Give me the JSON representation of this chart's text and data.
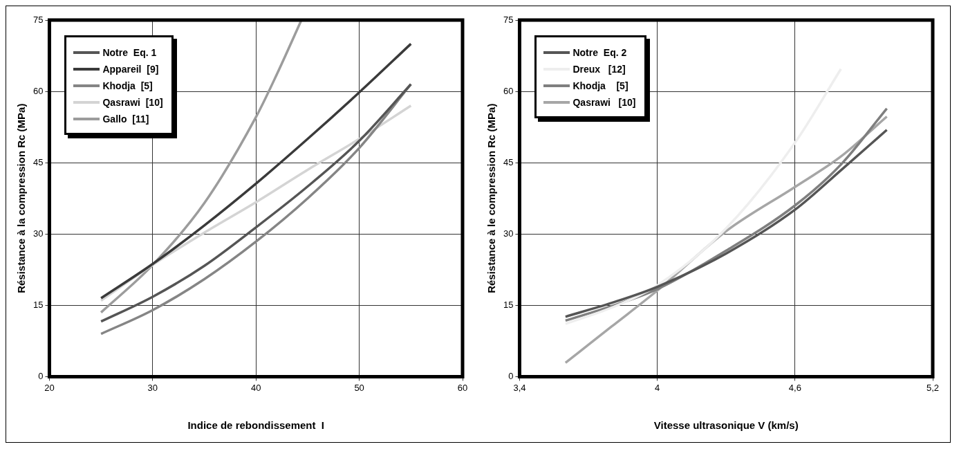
{
  "chart_data": [
    {
      "type": "line",
      "xlabel": "Indice de rebondissement  I",
      "ylabel": "Résistance à la compression Rc (MPa)",
      "xlim": [
        20,
        60
      ],
      "xticks": [
        20,
        30,
        40,
        50,
        60
      ],
      "ylim": [
        0,
        75
      ],
      "yticks": [
        0,
        15,
        30,
        45,
        60,
        75
      ],
      "grid": true,
      "legend": "top left",
      "marker": "none",
      "line_style": "solid",
      "series": [
        {
          "name": "Notre  Eq. 1",
          "color": "#555555",
          "x": [
            25,
            30,
            35,
            40,
            45,
            50,
            55
          ],
          "values": [
            11.6,
            16.8,
            23.3,
            31.4,
            40,
            49.6,
            61.5
          ]
        },
        {
          "name": "Appareil  [9]",
          "color": "#3a3a3a",
          "x": [
            25,
            30,
            35,
            40,
            45,
            50,
            55
          ],
          "values": [
            16.5,
            23.7,
            31.8,
            40.6,
            50,
            59.8,
            70
          ]
        },
        {
          "name": "Khodja  [5]",
          "color": "#858585",
          "x": [
            25,
            30,
            35,
            40,
            45,
            50,
            55
          ],
          "values": [
            9,
            14,
            20.5,
            28.4,
            37.5,
            48.1,
            61.5
          ]
        },
        {
          "name": "Qasrawi  [10]",
          "color": "#d4d4d4",
          "x": [
            25,
            30,
            35,
            40,
            45,
            50,
            55
          ],
          "values": [
            16,
            23.5,
            30.3,
            36.7,
            43.5,
            50,
            57
          ]
        },
        {
          "name": "Gallo  [11]",
          "color": "#9c9c9c",
          "x": [
            25,
            30,
            35,
            40,
            42,
            44.4
          ],
          "values": [
            13.5,
            23.5,
            36.5,
            54.6,
            63.5,
            75
          ]
        }
      ]
    },
    {
      "type": "line",
      "xlabel": "Vitesse ultrasonique V (km/s)",
      "ylabel": "Résistance à le compression Rc (MPa)",
      "xlim": [
        3.4,
        5.2
      ],
      "xticks": [
        {
          "value": 3.4,
          "label": "3,4"
        },
        4,
        {
          "value": 4.6,
          "label": "4,6"
        },
        {
          "value": 5.2,
          "label": "5,2"
        }
      ],
      "ylim": [
        0,
        75
      ],
      "yticks": [
        0,
        15,
        30,
        45,
        60,
        75
      ],
      "grid": true,
      "legend": "top left",
      "marker": "none",
      "line_style": "solid",
      "series": [
        {
          "name": "Notre  Eq. 2",
          "color": "#555555",
          "x": [
            3.6,
            3.8,
            4.0,
            4.3,
            4.6,
            4.8,
            5.0
          ],
          "values": [
            12.6,
            15.5,
            18.9,
            25.9,
            35.1,
            43.4,
            51.9
          ]
        },
        {
          "name": "Dreux   [12]",
          "color": "#eeeeee",
          "x": [
            3.6,
            3.8,
            4.0,
            4.3,
            4.6,
            4.8
          ],
          "values": [
            11.1,
            14.5,
            19.2,
            31.2,
            49.2,
            64.7
          ]
        },
        {
          "name": "Khodja    [5]",
          "color": "#7f7f7f",
          "x": [
            3.6,
            3.8,
            4.0,
            4.3,
            4.6,
            4.8,
            5.0
          ],
          "values": [
            11.8,
            14.8,
            18.4,
            26.5,
            36,
            44.6,
            56.4
          ]
        },
        {
          "name": "Qasrawi   [10]",
          "color": "#a6a6a6",
          "x": [
            3.6,
            3.8,
            4.0,
            4.3,
            4.6,
            4.8,
            5.0
          ],
          "values": [
            2.9,
            10.5,
            18.1,
            30.6,
            39.9,
            46.3,
            54.7
          ]
        }
      ]
    }
  ]
}
